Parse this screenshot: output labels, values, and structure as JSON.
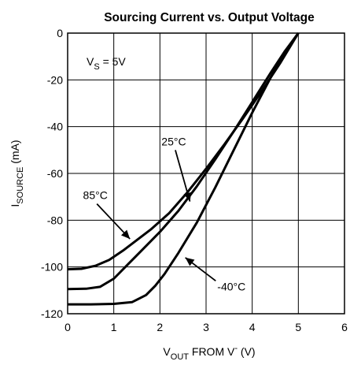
{
  "chart_data": {
    "type": "line",
    "title": "Sourcing Current vs. Output Voltage",
    "xlabel": {
      "main": "V",
      "sub": "OUT",
      "rest": " FROM V",
      "sup": "-",
      "unit": " (V)"
    },
    "ylabel": {
      "main": "I",
      "sub": "SOURCE",
      "unit": " (mA)"
    },
    "xlim": [
      0,
      6
    ],
    "ylim": [
      -120,
      0
    ],
    "xticks": [
      0,
      1,
      2,
      3,
      4,
      5,
      6
    ],
    "yticks": [
      0,
      -20,
      -40,
      -60,
      -80,
      -100,
      -120
    ],
    "xtick_labels": [
      "0",
      "1",
      "2",
      "3",
      "4",
      "5",
      "6"
    ],
    "ytick_labels": [
      "0",
      "-20",
      "-40",
      "-60",
      "-80",
      "-100",
      "-120"
    ],
    "grid": true,
    "condition": {
      "main": "V",
      "sub": "S",
      "rest": " = 5V"
    },
    "series": [
      {
        "name": "85°C",
        "points": [
          [
            0,
            -101
          ],
          [
            0.3,
            -100.8
          ],
          [
            0.6,
            -99.5
          ],
          [
            0.9,
            -97
          ],
          [
            1.2,
            -93
          ],
          [
            1.5,
            -88.5
          ],
          [
            1.8,
            -84
          ],
          [
            2.2,
            -77
          ],
          [
            2.6,
            -68
          ],
          [
            3.0,
            -58
          ],
          [
            3.4,
            -47.5
          ],
          [
            3.8,
            -36.5
          ],
          [
            4.2,
            -25
          ],
          [
            4.6,
            -13
          ],
          [
            5.0,
            0
          ]
        ]
      },
      {
        "name": "25°C",
        "points": [
          [
            0,
            -109.5
          ],
          [
            0.4,
            -109.3
          ],
          [
            0.7,
            -108.5
          ],
          [
            1.0,
            -105
          ],
          [
            1.3,
            -99
          ],
          [
            1.6,
            -93
          ],
          [
            2.0,
            -85
          ],
          [
            2.4,
            -76
          ],
          [
            2.8,
            -65.5
          ],
          [
            3.2,
            -54
          ],
          [
            3.6,
            -42
          ],
          [
            4.0,
            -29.5
          ],
          [
            4.4,
            -17
          ],
          [
            4.7,
            -8
          ],
          [
            5.0,
            0
          ]
        ]
      },
      {
        "name": "-40°C",
        "points": [
          [
            0,
            -116
          ],
          [
            0.5,
            -116
          ],
          [
            1.0,
            -115.8
          ],
          [
            1.4,
            -115
          ],
          [
            1.7,
            -112
          ],
          [
            1.9,
            -108
          ],
          [
            2.1,
            -103
          ],
          [
            2.4,
            -94
          ],
          [
            2.8,
            -81
          ],
          [
            3.2,
            -66
          ],
          [
            3.6,
            -50
          ],
          [
            4.0,
            -34
          ],
          [
            4.4,
            -19
          ],
          [
            4.7,
            -8.5
          ],
          [
            5.0,
            0
          ]
        ]
      }
    ],
    "annotations": [
      {
        "text": "85°C",
        "series": "85°C"
      },
      {
        "text": "25°C",
        "series": "25°C"
      },
      {
        "text": "-40°C",
        "series": "-40°C"
      }
    ]
  }
}
